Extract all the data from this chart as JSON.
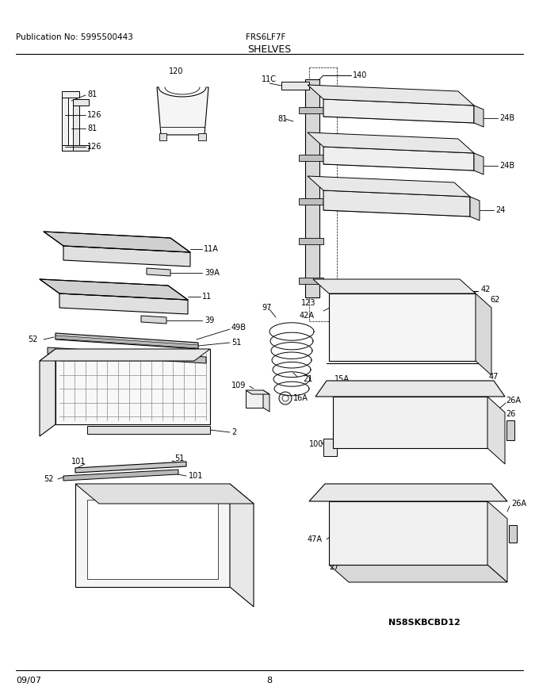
{
  "title": "SHELVES",
  "model": "FRS6LF7F",
  "publication": "Publication No: 5995500443",
  "date": "09/07",
  "page": "8",
  "diagram_id": "N58SKBCBD12",
  "bg_color": "#ffffff",
  "text_color": "#000000"
}
